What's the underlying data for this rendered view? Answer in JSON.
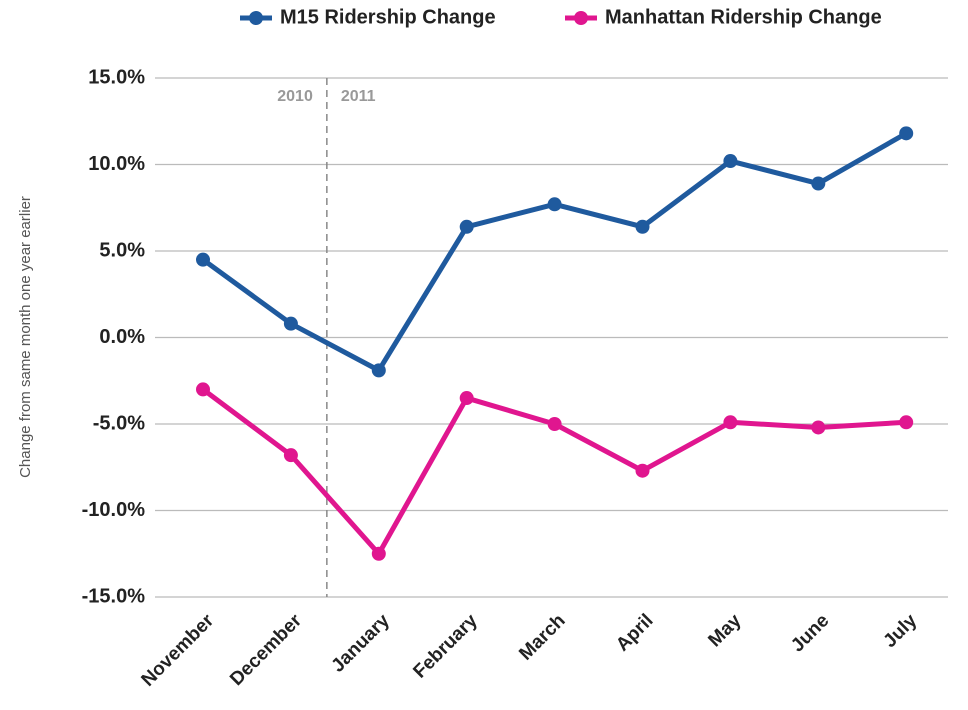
{
  "chart_data": {
    "type": "line",
    "y_axis_label": "Change from same month one year earlier",
    "categories": [
      "November",
      "December",
      "January",
      "February",
      "March",
      "April",
      "May",
      "June",
      "July"
    ],
    "series": [
      {
        "name": "M15 Ridership Change",
        "color": "#1f5a9e",
        "values": [
          4.5,
          0.8,
          -1.9,
          6.4,
          7.7,
          6.4,
          10.2,
          8.9,
          11.8
        ]
      },
      {
        "name": "Manhattan Ridership Change",
        "color": "#e0168f",
        "values": [
          -3.0,
          -6.8,
          -12.5,
          -3.5,
          -5.0,
          -7.7,
          -4.9,
          -5.2,
          -4.9
        ]
      }
    ],
    "ylim": [
      -15,
      15
    ],
    "yticks": [
      {
        "value": -15,
        "label": "-15.0%"
      },
      {
        "value": -10,
        "label": "-10.0%"
      },
      {
        "value": -5,
        "label": "-5.0%"
      },
      {
        "value": 0,
        "label": "0.0%"
      },
      {
        "value": 5,
        "label": "5.0%"
      },
      {
        "value": 10,
        "label": "10.0%"
      },
      {
        "value": 15,
        "label": "15.0%"
      }
    ],
    "grid": true,
    "divider_labels": [
      "2010",
      "2011"
    ]
  }
}
